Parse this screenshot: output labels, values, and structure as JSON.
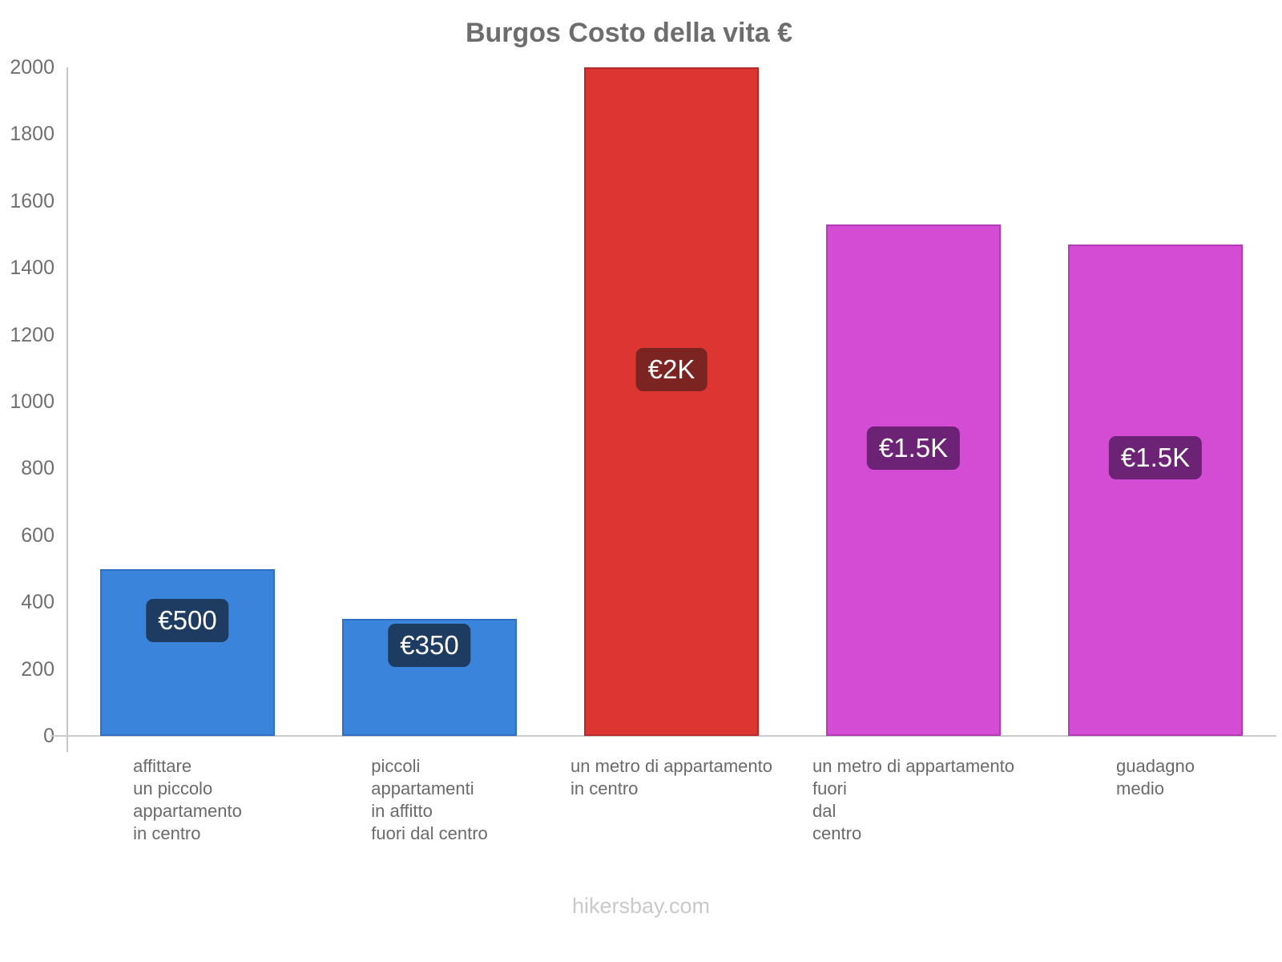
{
  "title": "Burgos Costo della vita €",
  "footer": "hikersbay.com",
  "chart_data": {
    "type": "bar",
    "title": "Burgos Costo della vita €",
    "categories": [
      [
        "affittare",
        "un piccolo",
        "appartamento",
        "in centro"
      ],
      [
        "piccoli",
        "appartamenti",
        "in affitto",
        "fuori dal centro"
      ],
      [
        "un metro di appartamento",
        "in centro"
      ],
      [
        "un metro di appartamento",
        "fuori",
        "dal",
        "centro"
      ],
      [
        "guadagno",
        "medio"
      ]
    ],
    "values": [
      500,
      350,
      2000,
      1530,
      1470
    ],
    "value_labels": [
      "€500",
      "€350",
      "€2K",
      "€1.5K",
      "€1.5K"
    ],
    "currency": "€",
    "xlabel": "",
    "ylabel": "",
    "ylim": [
      0,
      2000
    ],
    "ytick_step": 200,
    "ytick_labels": [
      "0",
      "200",
      "400",
      "600",
      "800",
      "1000",
      "1200",
      "1400",
      "1600",
      "1800",
      "2000"
    ],
    "grid": false,
    "legend": false,
    "bar_colors": [
      "#3a85db",
      "#3a85db",
      "#dc3532",
      "#d44bd4",
      "#d44bd4"
    ],
    "bar_border_colors": [
      "#2d6fc2",
      "#2d6fc2",
      "#b62a27",
      "#b23cb4",
      "#b23cb4"
    ],
    "badge_colors": [
      "#1e3c61",
      "#1e3c61",
      "#7b2422",
      "#6c2375",
      "#6c2375"
    ]
  },
  "colors": {
    "background": "#ffffff",
    "title_text": "#6d6d6d",
    "axis_tick_text": "#6f6f6f",
    "category_text": "#6a6a6a",
    "axis_line": "#c6c6c6",
    "baseline": "#cccccc",
    "badge_text": "#ffffff",
    "footer_text": "#c9c9c9"
  }
}
